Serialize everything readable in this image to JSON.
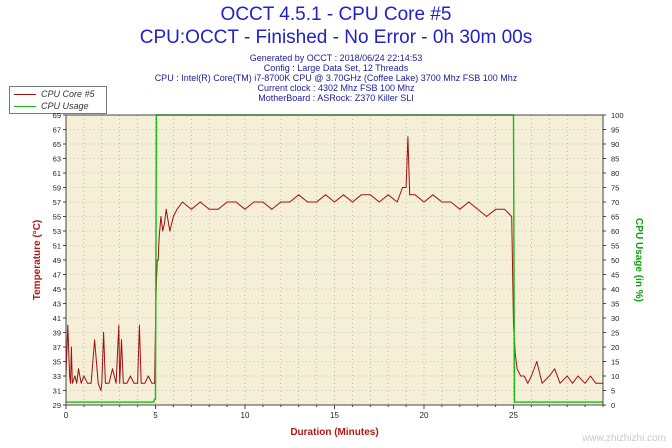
{
  "header": {
    "title_line1": "OCCT 4.5.1 - CPU Core #5",
    "title_line2": "CPU:OCCT - Finished - No Error - 0h 30m 00s",
    "info_lines": [
      "Generated by OCCT : 2018/06/24 22:14:53",
      "Config : Large Data Set, 12 Threads",
      "CPU : Intel(R) Core(TM) i7-8700K CPU @ 3.70GHz (Coffee Lake) 3700 Mhz FSB 100 Mhz",
      "Current clock : 4302 Mhz FSB 100 Mhz",
      "MotherBoard : ASRock: Z370 Killer SLI"
    ]
  },
  "watermark": "www.zhizhizhi.com",
  "colors": {
    "temperature_series": "#a01010",
    "usage_series": "#10c010",
    "plot_background": "#f6efd8",
    "grid": "#9a9a9a",
    "title": "#2121c8",
    "left_axis_label": "#b01818",
    "right_axis_label": "#10a010"
  },
  "chart_data": {
    "type": "line",
    "xlabel": "Duration (Minutes)",
    "ylabel_left": "Temperature (°C)",
    "ylabel_right": "CPU Usage (in %)",
    "xlim": [
      0,
      30
    ],
    "ylim_left": [
      29,
      69
    ],
    "ylim_right": [
      0,
      100
    ],
    "x_ticks": [
      0,
      5,
      10,
      15,
      20,
      25
    ],
    "y_left_ticks": [
      29,
      31,
      33,
      35,
      37,
      39,
      41,
      43,
      45,
      47,
      49,
      51,
      53,
      55,
      57,
      59,
      61,
      63,
      65,
      67,
      69
    ],
    "y_right_ticks": [
      0,
      5,
      10,
      15,
      20,
      25,
      30,
      35,
      40,
      45,
      50,
      55,
      60,
      65,
      70,
      75,
      80,
      85,
      90,
      95,
      100
    ],
    "grid": true,
    "legend": "top-left",
    "series": [
      {
        "name": "CPU Core #5",
        "axis": "left",
        "x": [
          0,
          0.1,
          0.2,
          0.25,
          0.3,
          0.35,
          0.5,
          0.6,
          0.7,
          0.85,
          1,
          1.2,
          1.4,
          1.6,
          1.8,
          1.95,
          2,
          2.1,
          2.2,
          2.4,
          2.6,
          2.8,
          2.95,
          3,
          3.1,
          3.2,
          3.4,
          3.6,
          3.8,
          4,
          4.1,
          4.2,
          4.4,
          4.6,
          4.8,
          4.95,
          5,
          5.05,
          5.1,
          5.15,
          5.2,
          5.3,
          5.4,
          5.5,
          5.6,
          5.8,
          6,
          6.2,
          6.5,
          7,
          7.5,
          8,
          8.5,
          9,
          9.5,
          10,
          10.5,
          11,
          11.5,
          12,
          12.5,
          13,
          13.5,
          14,
          14.5,
          15,
          15.5,
          16,
          16.5,
          17,
          17.5,
          18,
          18.5,
          18.8,
          19,
          19.1,
          19.2,
          19.5,
          20,
          20.5,
          21,
          21.5,
          22,
          22.5,
          23,
          23.5,
          24,
          24.5,
          24.9,
          25,
          25.05,
          25.1,
          25.2,
          25.4,
          25.6,
          25.8,
          26,
          26.3,
          26.6,
          27,
          27.3,
          27.6,
          28,
          28.3,
          28.6,
          29,
          29.3,
          29.6,
          30
        ],
        "y": [
          33,
          40,
          33,
          32,
          37,
          32,
          33,
          32,
          34,
          32,
          33,
          32,
          32,
          38,
          32,
          31,
          32,
          39,
          32,
          32,
          34,
          32,
          40,
          32,
          38,
          32,
          32,
          33,
          32,
          32,
          40,
          32,
          32,
          33,
          32,
          32,
          40,
          46,
          49,
          49,
          52,
          55,
          53,
          54,
          56,
          53,
          55,
          56,
          57,
          56,
          57,
          56,
          56,
          57,
          57,
          56,
          57,
          57,
          56,
          57,
          57,
          58,
          57,
          57,
          58,
          57,
          58,
          57,
          58,
          58,
          57,
          58,
          57,
          59,
          59,
          66,
          58,
          58,
          57,
          58,
          57,
          57,
          56,
          57,
          56,
          55,
          56,
          56,
          55,
          40,
          38,
          36,
          34,
          33,
          33,
          32,
          33,
          35,
          32,
          33,
          34,
          32,
          33,
          32,
          33,
          32,
          33,
          32,
          32
        ],
        "x_marks_note": "",
        "color_key": "temperature_series"
      },
      {
        "name": "CPU Usage",
        "axis": "right",
        "x": [
          0,
          4.9,
          4.95,
          5.0,
          5.05,
          25.0,
          25.05,
          30
        ],
        "y": [
          1,
          1,
          2,
          2,
          100,
          100,
          1,
          1
        ],
        "color_key": "usage_series"
      }
    ]
  }
}
